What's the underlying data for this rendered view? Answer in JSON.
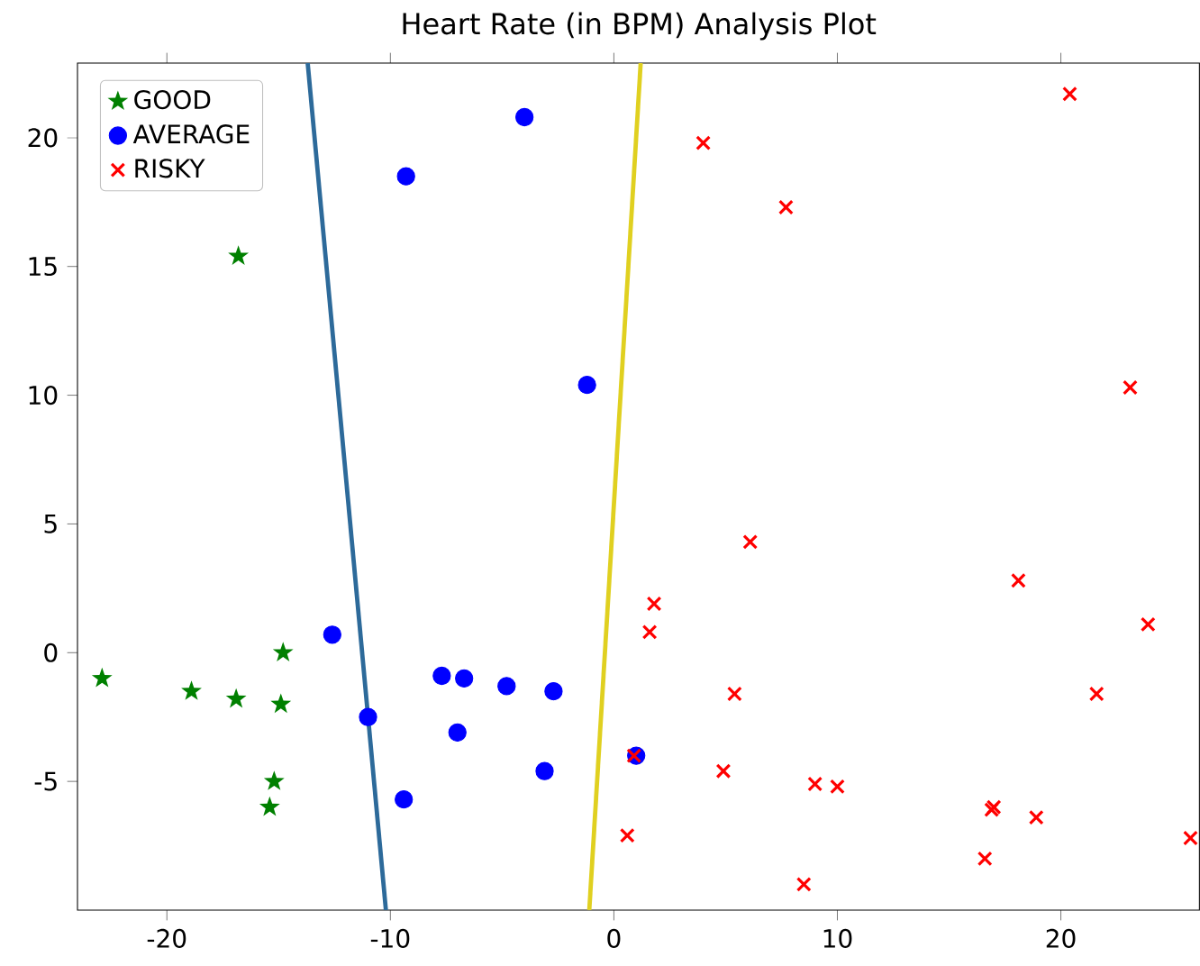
{
  "chart_data": {
    "type": "scatter",
    "title": "Heart Rate (in BPM) Analysis Plot",
    "xlim": [
      -24,
      26.2
    ],
    "ylim": [
      -10,
      22.9
    ],
    "xticks": [
      -20,
      -10,
      0,
      10,
      20
    ],
    "yticks": [
      -5,
      0,
      5,
      10,
      15,
      20
    ],
    "legend": "top left",
    "grid": false,
    "series": [
      {
        "name": "GOOD",
        "color": "#008000",
        "marker": "star",
        "x": [
          -22.9,
          -18.9,
          -16.9,
          -14.8,
          -14.9,
          -15.2,
          -15.4,
          -16.8
        ],
        "values": [
          -1.0,
          -1.5,
          -1.8,
          0.0,
          -2.0,
          -5.0,
          -6.0,
          15.4
        ]
      },
      {
        "name": "AVERAGE",
        "color": "#0000ff",
        "marker": "circle",
        "x": [
          -12.6,
          -11.0,
          -9.4,
          -7.7,
          -6.7,
          -7.0,
          -4.8,
          -2.7,
          -3.1,
          1.0,
          -1.2,
          -9.3,
          -4.0
        ],
        "values": [
          0.7,
          -2.5,
          -5.7,
          -0.9,
          -1.0,
          -3.1,
          -1.3,
          -1.5,
          -4.6,
          -4.0,
          10.4,
          18.5,
          20.8
        ]
      },
      {
        "name": "RISKY",
        "color": "#ff0000",
        "marker": "cross",
        "x": [
          6.1,
          1.8,
          1.6,
          5.4,
          0.9,
          4.9,
          0.6,
          8.5,
          9.0,
          10.0,
          18.1,
          23.9,
          21.6,
          16.9,
          17.0,
          18.9,
          16.6,
          25.8,
          4.0,
          7.7,
          20.4,
          23.1
        ],
        "values": [
          4.3,
          1.9,
          0.8,
          -1.6,
          -4.0,
          -4.6,
          -7.1,
          -9.0,
          -5.1,
          -5.2,
          2.8,
          1.1,
          -1.6,
          -6.1,
          -6.0,
          -6.4,
          -8.0,
          -7.2,
          19.8,
          17.3,
          21.7,
          10.3
        ]
      },
      {
        "type": "line",
        "color": "#2d6a9a",
        "marker": "none",
        "line_style": "solid",
        "x": [
          -13.7,
          -10.2
        ],
        "values": [
          22.9,
          -10.0
        ]
      },
      {
        "type": "line",
        "color": "#e0d020",
        "marker": "none",
        "line_style": "solid",
        "x": [
          1.2,
          -1.1
        ],
        "values": [
          22.9,
          -10.0
        ]
      }
    ]
  }
}
